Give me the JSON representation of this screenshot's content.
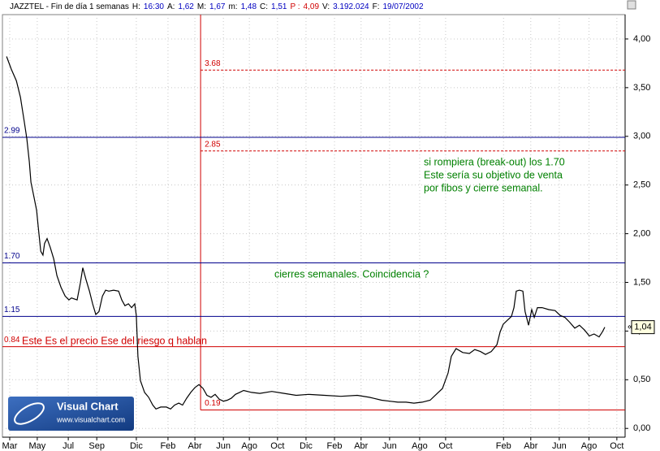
{
  "chart_data": {
    "type": "line",
    "header": [
      {
        "text": "JAZZTEL - Fin de día 1 semanas",
        "color": "#000000"
      },
      {
        "text": "H:",
        "color": "#000000"
      },
      {
        "text": "16:30",
        "color": "#0000c0"
      },
      {
        "text": "A:",
        "color": "#000000"
      },
      {
        "text": "1,62",
        "color": "#0000c0"
      },
      {
        "text": "M:",
        "color": "#000000"
      },
      {
        "text": "1,67",
        "color": "#0000c0"
      },
      {
        "text": "m:",
        "color": "#000000"
      },
      {
        "text": "1,48",
        "color": "#0000c0"
      },
      {
        "text": "C:",
        "color": "#000000"
      },
      {
        "text": "1,51",
        "color": "#0000c0"
      },
      {
        "text": "P :",
        "color": "#d00000"
      },
      {
        "text": "4,09",
        "color": "#d00000"
      },
      {
        "text": "V:",
        "color": "#000000"
      },
      {
        "text": "3.192.024",
        "color": "#0000c0"
      },
      {
        "text": "F:",
        "color": "#000000"
      },
      {
        "text": "19/07/2002",
        "color": "#0000c0"
      }
    ],
    "x": [
      0,
      1.5,
      3.1,
      4.4,
      5.6,
      6.4,
      7.2,
      7.7,
      8.7,
      9.5,
      10,
      10.8,
      11.5,
      12,
      12.8,
      13.8,
      14.9,
      15.9,
      17.2,
      18.5,
      19.7,
      20.5,
      22.3,
      23.3,
      24.1,
      25.1,
      26.2,
      27.2,
      28.2,
      29.2,
      30.3,
      31.3,
      32.3,
      33.8,
      35.4,
      36.4,
      37.4,
      38.5,
      39.5,
      40.5,
      41,
      41.5,
      42.3,
      43.6,
      44.9,
      46.2,
      47.2,
      48.7,
      50.5,
      51.8,
      53.1,
      54.4,
      55.6,
      56.9,
      58.2,
      59.5,
      60.8,
      62.1,
      63.3,
      64.6,
      65.9,
      67.2,
      68.5,
      69.7,
      71,
      72.3,
      73.6,
      74.9,
      77.4,
      80,
      83.8,
      87.7,
      91.5,
      95.4,
      100.5,
      105.6,
      110.8,
      114.6,
      115.9,
      118.5,
      121,
      123.6,
      126.2,
      128.7,
      131.3,
      133.8,
      137.7,
      139.5,
      140.5,
      142,
      144.1,
      146.2,
      147.9,
      149.7,
      151.3,
      153.1,
      154.9,
      155.9,
      156.9,
      158.2,
      159.5,
      160.3,
      161,
      162,
      163.1,
      163.8,
      164.9,
      165.9,
      166.7,
      167.7,
      169.2,
      171.3,
      173.3,
      174.9,
      176.4,
      177.9,
      179.5,
      181,
      182.6,
      184.1,
      185.6,
      187.2,
      188.2,
      189
    ],
    "series": [
      {
        "color": "#000000",
        "values": [
          3.82,
          3.69,
          3.57,
          3.4,
          3.15,
          2.98,
          2.74,
          2.53,
          2.37,
          2.24,
          2.07,
          1.82,
          1.78,
          1.9,
          1.95,
          1.86,
          1.74,
          1.57,
          1.45,
          1.36,
          1.32,
          1.34,
          1.32,
          1.49,
          1.65,
          1.53,
          1.41,
          1.28,
          1.17,
          1.2,
          1.36,
          1.42,
          1.41,
          1.42,
          1.41,
          1.32,
          1.26,
          1.28,
          1.24,
          1.28,
          1.16,
          0.74,
          0.49,
          0.37,
          0.32,
          0.24,
          0.2,
          0.22,
          0.22,
          0.2,
          0.24,
          0.26,
          0.24,
          0.31,
          0.37,
          0.42,
          0.45,
          0.41,
          0.34,
          0.32,
          0.35,
          0.3,
          0.28,
          0.29,
          0.31,
          0.35,
          0.37,
          0.39,
          0.37,
          0.36,
          0.38,
          0.36,
          0.34,
          0.35,
          0.34,
          0.33,
          0.34,
          0.32,
          0.31,
          0.29,
          0.28,
          0.27,
          0.27,
          0.26,
          0.27,
          0.29,
          0.41,
          0.57,
          0.74,
          0.82,
          0.78,
          0.77,
          0.81,
          0.79,
          0.76,
          0.79,
          0.86,
          0.99,
          1.07,
          1.11,
          1.15,
          1.24,
          1.41,
          1.42,
          1.41,
          1.2,
          1.06,
          1.22,
          1.14,
          1.24,
          1.24,
          1.22,
          1.21,
          1.16,
          1.14,
          1.09,
          1.03,
          1.06,
          1.01,
          0.95,
          0.97,
          0.94,
          0.99,
          1.04
        ]
      }
    ],
    "xlim": [
      -1.3,
      195.4
    ],
    "xticks": [
      {
        "value": 1,
        "label": "Mar"
      },
      {
        "value": 9.7,
        "label": "May"
      },
      {
        "value": 19.5,
        "label": "Jul"
      },
      {
        "value": 28.5,
        "label": "Sep"
      },
      {
        "value": 41,
        "label": "Dic"
      },
      {
        "value": 51,
        "label": "Feb"
      },
      {
        "value": 59.5,
        "label": "Abr"
      },
      {
        "value": 68.5,
        "label": "Jun"
      },
      {
        "value": 76.7,
        "label": "Ago"
      },
      {
        "value": 85.6,
        "label": "Oct"
      },
      {
        "value": 94.6,
        "label": "Dic"
      },
      {
        "value": 103.6,
        "label": "Feb"
      },
      {
        "value": 112,
        "label": "Abr"
      },
      {
        "value": 121,
        "label": "Jun"
      },
      {
        "value": 130.5,
        "label": "Ago"
      },
      {
        "value": 138.7,
        "label": "Oct"
      },
      {
        "value": 157,
        "label": "Feb"
      },
      {
        "value": 165.6,
        "label": "Abr"
      },
      {
        "value": 174.6,
        "label": "Jun"
      },
      {
        "value": 184,
        "label": "Ago"
      },
      {
        "value": 192.8,
        "label": "Oct"
      }
    ],
    "ylim": [
      -0.09,
      4.25
    ],
    "yticks": [
      {
        "value": 0,
        "label": "0,00"
      },
      {
        "value": 0.5,
        "label": "0,50"
      },
      {
        "value": 1,
        "label": "1,00"
      },
      {
        "value": 1.5,
        "label": "1,50"
      },
      {
        "value": 2,
        "label": "2,00"
      },
      {
        "value": 2.5,
        "label": "2,50"
      },
      {
        "value": 3,
        "label": "3,00"
      },
      {
        "value": 3.5,
        "label": "3,50"
      },
      {
        "value": 4,
        "label": "4,00"
      }
    ],
    "grid": true,
    "last_price": {
      "value": 1.04,
      "label": "1,04",
      "marker": "«"
    },
    "hlines": [
      {
        "value": 2.99,
        "label": "2.99",
        "color": "#00008b",
        "style": "solid"
      },
      {
        "value": 1.7,
        "label": "1.70",
        "color": "#00008b",
        "style": "solid"
      },
      {
        "value": 1.15,
        "label": "1.15",
        "color": "#00008b",
        "style": "solid"
      },
      {
        "value": 0.84,
        "label": "0.84",
        "color": "#d00000",
        "style": "solid"
      },
      {
        "value": 3.68,
        "label": "3.68",
        "color": "#d00000",
        "style": "dashed",
        "x_start": 61.3
      },
      {
        "value": 2.85,
        "label": "2.85",
        "color": "#d00000",
        "style": "dashed",
        "x_start": 61.3
      },
      {
        "value": 0.19,
        "label": "0.19",
        "color": "#d00000",
        "style": "solid",
        "x_start": 61.3
      }
    ],
    "vlines": [
      {
        "value": 61.3,
        "color": "#d00000"
      }
    ],
    "annotations": [
      {
        "lines": [
          "Este Es el precio Ese del riesgo q hablan"
        ],
        "color": "#d00000"
      },
      {
        "lines": [
          "cierres semanales. Coincidencia ?"
        ],
        "color": "#008000"
      },
      {
        "lines": [
          "si rompiera (break-out) los 1.70",
          "Este sería su objetivo de venta",
          "por fibos y cierre semanal."
        ],
        "color": "#008000"
      }
    ],
    "logo": {
      "title": "Visual Chart",
      "url": "www.visualchart.com"
    }
  }
}
